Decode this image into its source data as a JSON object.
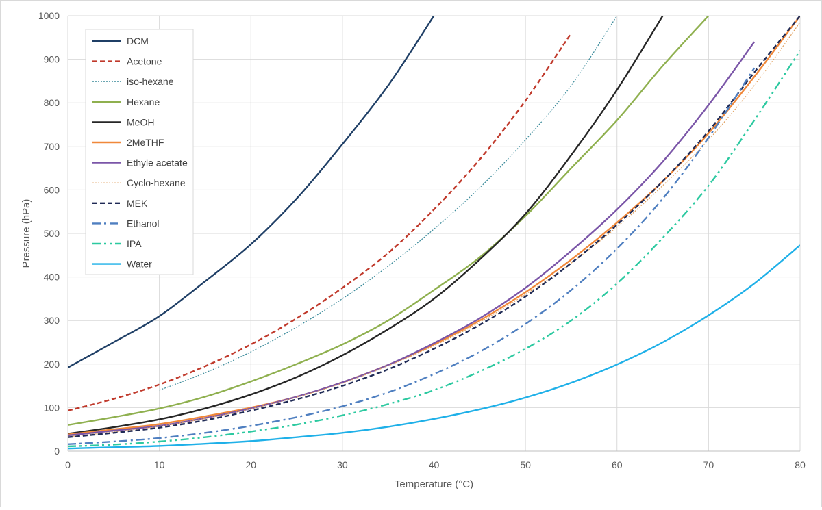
{
  "chart_data": {
    "type": "line",
    "title": "",
    "xlabel": "Temperature (°C)",
    "ylabel": "Pressure (hPa)",
    "xlim": [
      0,
      80
    ],
    "ylim": [
      0,
      1000
    ],
    "x_ticks": [
      0,
      10,
      20,
      30,
      40,
      50,
      60,
      70,
      80
    ],
    "y_ticks": [
      0,
      100,
      200,
      300,
      400,
      500,
      600,
      700,
      800,
      900,
      1000
    ],
    "grid": true,
    "legend_position": "top-left",
    "x": [
      0,
      5,
      10,
      15,
      20,
      25,
      30,
      35,
      40,
      45,
      50,
      55,
      60,
      65,
      70,
      75,
      80
    ],
    "series": [
      {
        "name": "DCM",
        "color": "#1f3f66",
        "dash": "solid",
        "width": 2.4,
        "values": [
          192,
          250,
          310,
          390,
          475,
          580,
          705,
          840,
          1000,
          null,
          null,
          null,
          null,
          null,
          null,
          null,
          null
        ]
      },
      {
        "name": "Acetone",
        "color": "#c0392b",
        "dash": "dashed",
        "width": 2.4,
        "values": [
          93,
          120,
          153,
          195,
          245,
          305,
          375,
          455,
          555,
          670,
          805,
          960,
          null,
          null,
          null,
          null,
          null
        ]
      },
      {
        "name": "iso-hexane",
        "color": "#3a8a9a",
        "dash": "dotted",
        "width": 1.2,
        "values": [
          null,
          null,
          140,
          180,
          228,
          285,
          350,
          425,
          510,
          605,
          715,
          840,
          1000,
          null,
          null,
          null,
          null
        ]
      },
      {
        "name": "Hexane",
        "color": "#8fb04f",
        "dash": "solid",
        "width": 2.4,
        "values": [
          60,
          78,
          98,
          125,
          160,
          200,
          245,
          300,
          370,
          445,
          540,
          650,
          760,
          885,
          1000,
          null,
          null
        ]
      },
      {
        "name": "MeOH",
        "color": "#262626",
        "dash": "solid",
        "width": 2.4,
        "values": [
          40,
          55,
          73,
          98,
          130,
          170,
          220,
          280,
          350,
          440,
          545,
          680,
          830,
          1000,
          null,
          null,
          null
        ]
      },
      {
        "name": "2MeTHF",
        "color": "#f0883a",
        "dash": "solid",
        "width": 2.4,
        "values": [
          38,
          50,
          62,
          80,
          100,
          125,
          158,
          198,
          245,
          300,
          365,
          440,
          525,
          620,
          730,
          860,
          1000
        ]
      },
      {
        "name": "Ethyle acetate",
        "color": "#7b56a8",
        "dash": "solid",
        "width": 2.4,
        "values": [
          36,
          47,
          58,
          76,
          98,
          125,
          158,
          198,
          248,
          305,
          375,
          460,
          555,
          665,
          795,
          940,
          null
        ]
      },
      {
        "name": "Cyclo-hexane",
        "color": "#e0a060",
        "dash": "dotted",
        "width": 1.2,
        "values": [
          33,
          44,
          57,
          75,
          97,
          124,
          156,
          196,
          242,
          296,
          360,
          432,
          515,
          610,
          715,
          840,
          985
        ]
      },
      {
        "name": "MEK",
        "color": "#1f2a55",
        "dash": "dashed",
        "width": 2.4,
        "values": [
          32,
          42,
          54,
          71,
          93,
          119,
          150,
          188,
          235,
          290,
          355,
          432,
          520,
          620,
          735,
          870,
          1000
        ]
      },
      {
        "name": "Ethanol",
        "color": "#4f7fc0",
        "dash": "dashdot",
        "width": 2.4,
        "values": [
          16,
          22,
          30,
          42,
          58,
          78,
          103,
          135,
          177,
          228,
          292,
          370,
          465,
          580,
          720,
          880,
          null
        ]
      },
      {
        "name": "IPA",
        "color": "#2cc9a0",
        "dash": "dashdotdot",
        "width": 2.4,
        "values": [
          11,
          15,
          22,
          32,
          45,
          61,
          82,
          108,
          140,
          183,
          235,
          300,
          385,
          490,
          610,
          760,
          920
        ]
      },
      {
        "name": "Water",
        "color": "#1fb0e8",
        "dash": "solid",
        "width": 2.4,
        "values": [
          6,
          9,
          12,
          17,
          23,
          32,
          42,
          56,
          74,
          96,
          123,
          157,
          199,
          250,
          312,
          385,
          473
        ]
      }
    ]
  }
}
